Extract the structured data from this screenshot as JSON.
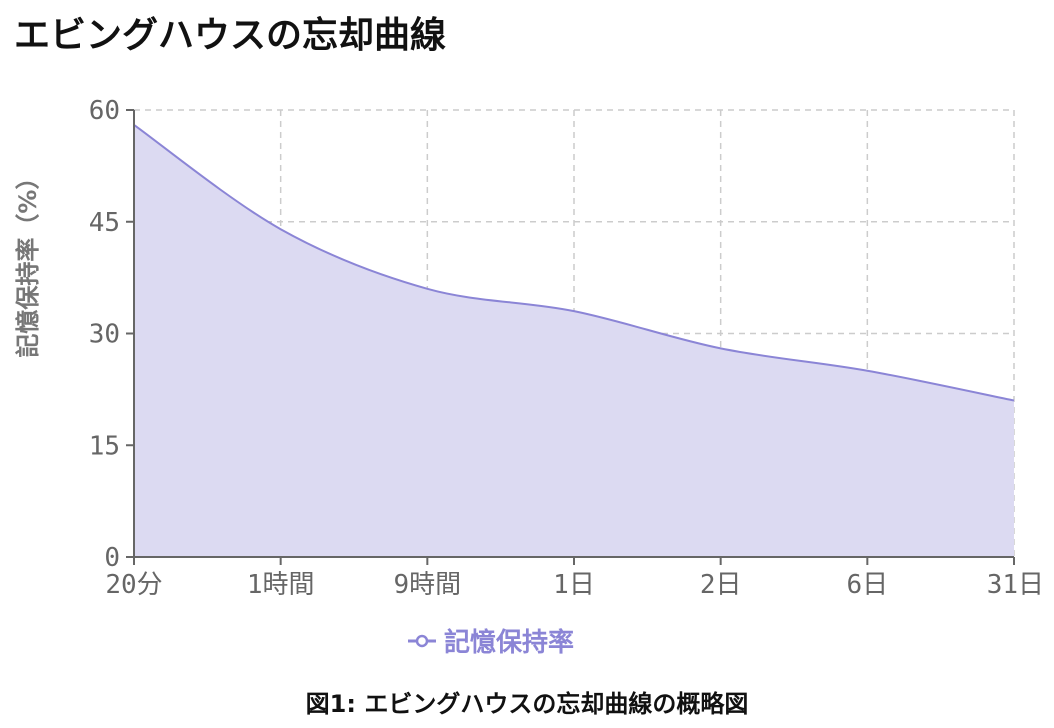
{
  "title": "エビングハウスの忘却曲線",
  "caption": "図1: エビングハウスの忘却曲線の概略図",
  "colors": {
    "line": "#8b85d6",
    "fill": "#dcdaf2",
    "grid": "#cccccc",
    "axis": "#666666"
  },
  "chart_data": {
    "type": "area",
    "categories": [
      "20分",
      "1時間",
      "9時間",
      "1日",
      "2日",
      "6日",
      "31日"
    ],
    "series": [
      {
        "name": "記憶保持率",
        "values": [
          58,
          44,
          36,
          33,
          28,
          25,
          21
        ]
      }
    ],
    "ylabel": "記憶保持率（%）",
    "xlabel": "",
    "ylim": [
      0,
      60
    ],
    "yticks": [
      0,
      15,
      30,
      45,
      60
    ],
    "grid": true,
    "legend_position": "bottom"
  }
}
